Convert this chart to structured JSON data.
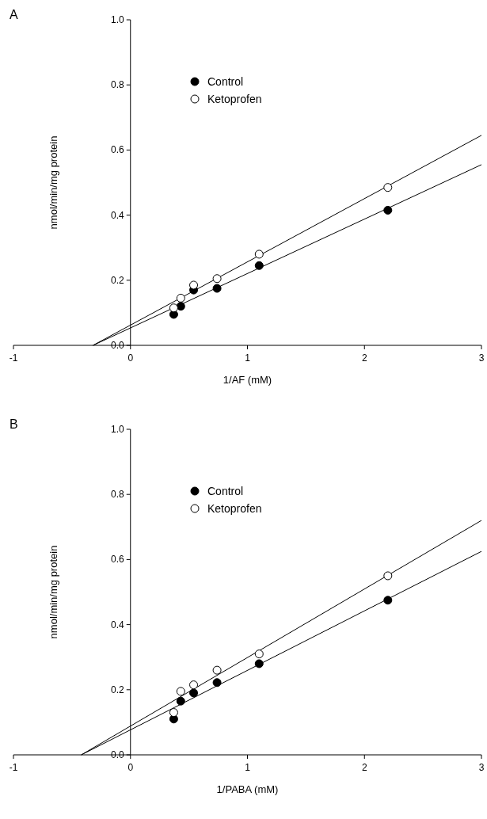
{
  "chart_data": [
    {
      "type": "scatter",
      "title": "A",
      "xlabel": "1/AF (mM)",
      "ylabel": "nmol/min/mg protein",
      "xlim": [
        -1,
        3
      ],
      "ylim": [
        0,
        1
      ],
      "xticks": [
        -1,
        0,
        1,
        2,
        3
      ],
      "yticks": [
        {
          "value": 0,
          "label": "0.0"
        },
        {
          "value": 0.2,
          "label": "0.2"
        },
        {
          "value": 0.4,
          "label": "0.4"
        },
        {
          "value": 0.6,
          "label": "0.6"
        },
        {
          "value": 0.8,
          "label": "0.8"
        },
        {
          "value": 1,
          "label": "1.0"
        }
      ],
      "legend": "top",
      "x": [
        0.37,
        0.43,
        0.54,
        0.74,
        1.1,
        2.2
      ],
      "series": [
        {
          "name": "Control",
          "color": "#000000",
          "marker": "circle",
          "values": [
            0.095,
            0.12,
            0.17,
            0.175,
            0.245,
            0.415
          ]
        },
        {
          "name": "Ketoprofen",
          "color": "#ffffff",
          "marker": "circle",
          "values": [
            0.115,
            0.145,
            0.185,
            0.205,
            0.28,
            0.485
          ]
        },
        {
          "type": "line",
          "color": "#000000",
          "marker": "none",
          "x": [
            -0.32,
            3
          ],
          "values": [
            0,
            0.555
          ]
        },
        {
          "type": "line",
          "color": "#000000",
          "marker": "none",
          "x": [
            -0.32,
            3
          ],
          "values": [
            0,
            0.645
          ]
        }
      ]
    },
    {
      "type": "scatter",
      "title": "B",
      "xlabel": "1/PABA (mM)",
      "ylabel": "nmol/min/mg protein",
      "xlim": [
        -1,
        3
      ],
      "ylim": [
        0,
        1
      ],
      "xticks": [
        -1,
        0,
        1,
        2,
        3
      ],
      "yticks": [
        {
          "value": 0,
          "label": "0.0"
        },
        {
          "value": 0.2,
          "label": "0.2"
        },
        {
          "value": 0.4,
          "label": "0.4"
        },
        {
          "value": 0.6,
          "label": "0.6"
        },
        {
          "value": 0.8,
          "label": "0.8"
        },
        {
          "value": 1,
          "label": "1.0"
        }
      ],
      "legend": "top",
      "x": [
        0.37,
        0.43,
        0.54,
        0.74,
        1.1,
        2.2
      ],
      "series": [
        {
          "name": "Control",
          "color": "#000000",
          "marker": "circle",
          "values": [
            0.11,
            0.165,
            0.19,
            0.222,
            0.28,
            0.475
          ]
        },
        {
          "name": "Ketoprofen",
          "color": "#ffffff",
          "marker": "circle",
          "values": [
            0.13,
            0.195,
            0.215,
            0.26,
            0.31,
            0.55
          ]
        },
        {
          "type": "line",
          "color": "#000000",
          "marker": "none",
          "x": [
            -0.42,
            3
          ],
          "values": [
            0,
            0.625
          ]
        },
        {
          "type": "line",
          "color": "#000000",
          "marker": "none",
          "x": [
            -0.42,
            3
          ],
          "values": [
            0,
            0.72
          ]
        }
      ]
    }
  ]
}
